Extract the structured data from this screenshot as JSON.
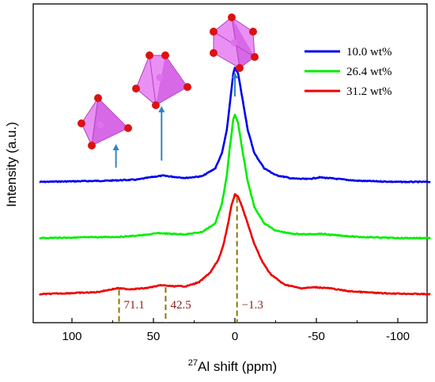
{
  "chart_data": {
    "type": "line",
    "title": "",
    "xlabel_sup": "27",
    "xlabel_main": "Al shift (ppm)",
    "ylabel": "Intensity (a.u.)",
    "xlim": [
      120,
      -120
    ],
    "x_reversed": true,
    "x_ticks": [
      100,
      50,
      0,
      -50,
      -100
    ],
    "x_tick_labels": [
      "100",
      "50",
      "0",
      "-50",
      "-100"
    ],
    "y_ticks_shown": false,
    "legend_placement": "top-right",
    "series": [
      {
        "name": "10.0 wt%",
        "color": "#0000ee",
        "baseline": 0.8,
        "points": [
          [
            120,
            0.0
          ],
          [
            80,
            0.01
          ],
          [
            60,
            0.02
          ],
          [
            50,
            0.045
          ],
          [
            44,
            0.055
          ],
          [
            38,
            0.045
          ],
          [
            30,
            0.035
          ],
          [
            20,
            0.05
          ],
          [
            12,
            0.12
          ],
          [
            8,
            0.25
          ],
          [
            5,
            0.45
          ],
          [
            3,
            0.7
          ],
          [
            1,
            0.95
          ],
          [
            0,
            1.0
          ],
          [
            -2,
            0.95
          ],
          [
            -5,
            0.7
          ],
          [
            -8,
            0.45
          ],
          [
            -12,
            0.25
          ],
          [
            -18,
            0.12
          ],
          [
            -25,
            0.06
          ],
          [
            -35,
            0.03
          ],
          [
            -45,
            0.025
          ],
          [
            -52,
            0.04
          ],
          [
            -60,
            0.03
          ],
          [
            -75,
            0.01
          ],
          [
            -100,
            0.0
          ],
          [
            -120,
            0.0
          ]
        ],
        "amplitude": 0.48
      },
      {
        "name": "26.4 wt%",
        "color": "#00ee00",
        "baseline": 0.4,
        "points": [
          [
            120,
            0.0
          ],
          [
            70,
            0.01
          ],
          [
            55,
            0.025
          ],
          [
            47,
            0.04
          ],
          [
            40,
            0.035
          ],
          [
            30,
            0.03
          ],
          [
            20,
            0.05
          ],
          [
            12,
            0.12
          ],
          [
            8,
            0.28
          ],
          [
            5,
            0.5
          ],
          [
            3,
            0.75
          ],
          [
            1,
            0.96
          ],
          [
            0,
            1.0
          ],
          [
            -2,
            0.93
          ],
          [
            -5,
            0.68
          ],
          [
            -8,
            0.45
          ],
          [
            -12,
            0.25
          ],
          [
            -18,
            0.12
          ],
          [
            -25,
            0.06
          ],
          [
            -35,
            0.035
          ],
          [
            -45,
            0.03
          ],
          [
            -52,
            0.035
          ],
          [
            -60,
            0.025
          ],
          [
            -75,
            0.01
          ],
          [
            -100,
            0.0
          ],
          [
            -120,
            0.0
          ]
        ],
        "amplitude": 0.52
      },
      {
        "name": "31.2 wt%",
        "color": "#ee0000",
        "baseline": 0.0,
        "points": [
          [
            120,
            0.0
          ],
          [
            85,
            0.02
          ],
          [
            72,
            0.06
          ],
          [
            65,
            0.05
          ],
          [
            55,
            0.06
          ],
          [
            45,
            0.09
          ],
          [
            38,
            0.08
          ],
          [
            30,
            0.08
          ],
          [
            22,
            0.12
          ],
          [
            15,
            0.22
          ],
          [
            10,
            0.35
          ],
          [
            7,
            0.5
          ],
          [
            4,
            0.72
          ],
          [
            2,
            0.9
          ],
          [
            0,
            1.0
          ],
          [
            -2,
            0.98
          ],
          [
            -5,
            0.85
          ],
          [
            -8,
            0.7
          ],
          [
            -12,
            0.5
          ],
          [
            -17,
            0.32
          ],
          [
            -22,
            0.2
          ],
          [
            -30,
            0.1
          ],
          [
            -40,
            0.06
          ],
          [
            -50,
            0.07
          ],
          [
            -58,
            0.06
          ],
          [
            -70,
            0.03
          ],
          [
            -90,
            0.01
          ],
          [
            -120,
            0.0
          ]
        ],
        "amplitude": 0.42
      }
    ],
    "peak_markers": [
      {
        "x": 71.1,
        "label": "71.1"
      },
      {
        "x": 42.5,
        "label": "42.5"
      },
      {
        "x": -1.3,
        "label": "−1.3"
      }
    ],
    "peak_marker_color": "#8b7500",
    "peak_label_color": "#8b1a1a",
    "arrows": [
      {
        "x": 73
      },
      {
        "x": 45
      },
      {
        "x": 0
      }
    ],
    "arrow_color": "#2e86c1",
    "polyhedra": [
      "tetrahedron-icon",
      "pentahedron-icon",
      "octahedron-icon"
    ],
    "polyhedra_colors": {
      "face": "#e36bf0",
      "atom": "#dd1111"
    }
  }
}
